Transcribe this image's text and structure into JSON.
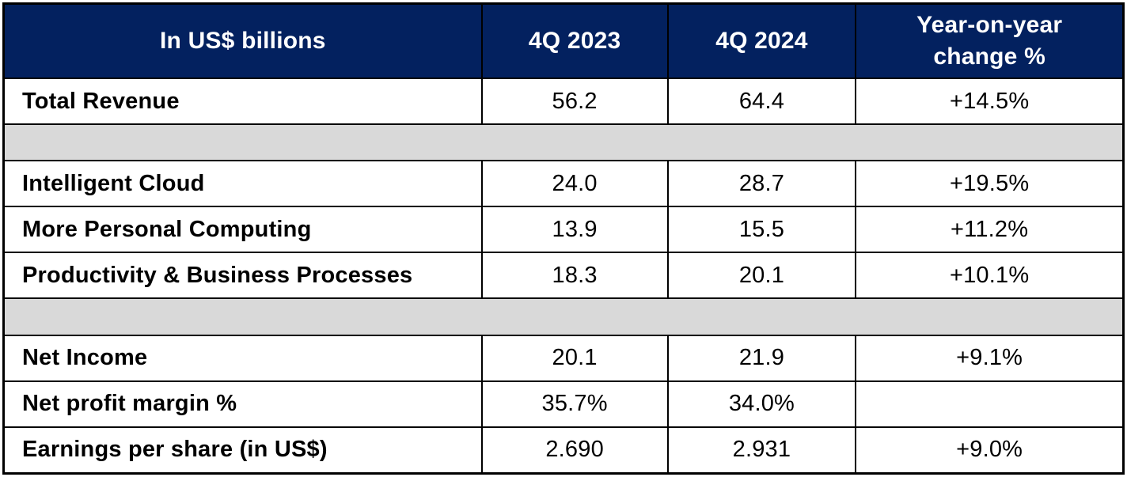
{
  "theme": {
    "header_bg": "#03215F",
    "header_text": "#FFFFFF",
    "spacer_bg": "#D9D9D9",
    "border_color": "#000000",
    "body_text": "#000000"
  },
  "table": {
    "header": {
      "metric": "In US$ billions",
      "col_2023": "4Q 2023",
      "col_2024": "4Q 2024",
      "col_yoy": "Year-on-year change %"
    },
    "rows": [
      {
        "label": "Total Revenue",
        "q4_2023": "56.2",
        "q4_2024": "64.4",
        "yoy": "+14.5%"
      },
      {
        "label": "Intelligent Cloud",
        "q4_2023": "24.0",
        "q4_2024": "28.7",
        "yoy": "+19.5%"
      },
      {
        "label": "More Personal Computing",
        "q4_2023": "13.9",
        "q4_2024": "15.5",
        "yoy": "+11.2%"
      },
      {
        "label": "Productivity & Business Processes",
        "q4_2023": "18.3",
        "q4_2024": "20.1",
        "yoy": "+10.1%"
      },
      {
        "label": "Net Income",
        "q4_2023": "20.1",
        "q4_2024": "21.9",
        "yoy": "+9.1%"
      },
      {
        "label": "Net profit margin %",
        "q4_2023": "35.7%",
        "q4_2024": "34.0%",
        "yoy": ""
      },
      {
        "label": "Earnings per share (in US$)",
        "q4_2023": "2.690",
        "q4_2024": "2.931",
        "yoy": "+9.0%"
      }
    ]
  },
  "chart_data": {
    "type": "table",
    "title": "In US$ billions",
    "columns": [
      "In US$ billions",
      "4Q 2023",
      "4Q 2024",
      "Year-on-year change %"
    ],
    "rows": [
      [
        "Total Revenue",
        "56.2",
        "64.4",
        "+14.5%"
      ],
      [
        "Intelligent Cloud",
        "24.0",
        "28.7",
        "+19.5%"
      ],
      [
        "More Personal Computing",
        "13.9",
        "15.5",
        "+11.2%"
      ],
      [
        "Productivity & Business Processes",
        "18.3",
        "20.1",
        "+10.1%"
      ],
      [
        "Net Income",
        "20.1",
        "21.9",
        "+9.1%"
      ],
      [
        "Net profit margin %",
        "35.7%",
        "34.0%",
        ""
      ],
      [
        "Earnings per share (in US$)",
        "2.690",
        "2.931",
        "+9.0%"
      ]
    ],
    "notes": "Gray spacer rows separate Total Revenue, segment breakdown, and profitability sections; Net profit margin YoY cell is blank/gray"
  }
}
